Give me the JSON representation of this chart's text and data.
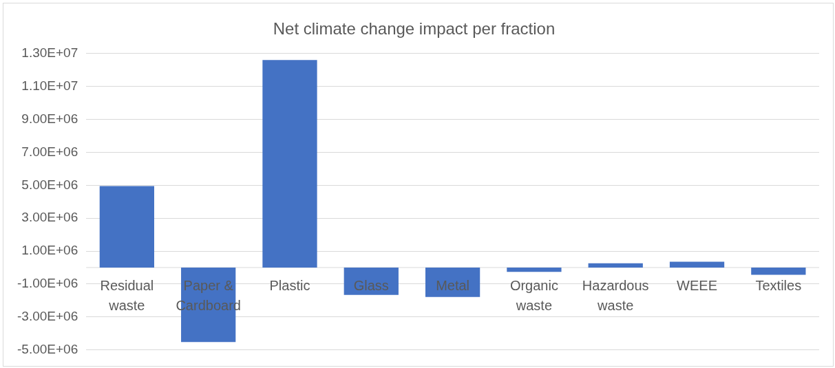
{
  "chart_data": {
    "type": "bar",
    "title": "Net climate change impact per fraction",
    "categories": [
      "Residual waste",
      "Paper & Cardboard",
      "Plastic",
      "Glass",
      "Metal",
      "Organic waste",
      "Hazardous waste",
      "WEEE",
      "Textiles"
    ],
    "values": [
      4950000,
      -4530000,
      12600000,
      -1660000,
      -1790000,
      -260000,
      260000,
      350000,
      -440000
    ],
    "color": "#4472c4",
    "ylim": [
      -5000000,
      13000000
    ],
    "yticks": [
      {
        "value": -5000000,
        "label": "-5.00E+06"
      },
      {
        "value": -3000000,
        "label": "-3.00E+06"
      },
      {
        "value": -1000000,
        "label": "-1.00E+06"
      },
      {
        "value": 1000000,
        "label": "1.00E+06"
      },
      {
        "value": 3000000,
        "label": "3.00E+06"
      },
      {
        "value": 5000000,
        "label": "5.00E+06"
      },
      {
        "value": 7000000,
        "label": "7.00E+06"
      },
      {
        "value": 9000000,
        "label": "9.00E+06"
      },
      {
        "value": 11000000,
        "label": "1.10E+07"
      },
      {
        "value": 13000000,
        "label": "1.30E+07"
      }
    ],
    "grid": "y"
  }
}
